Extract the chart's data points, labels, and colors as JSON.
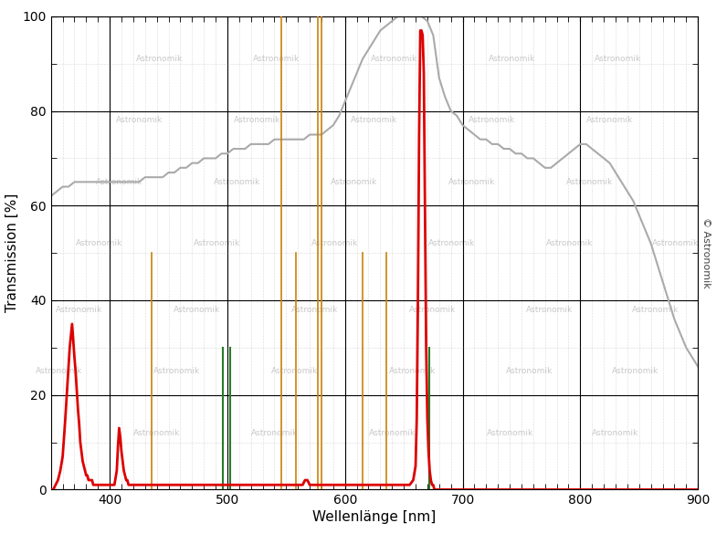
{
  "xlim": [
    350,
    900
  ],
  "ylim": [
    0,
    100
  ],
  "xlabel": "Wellenlänge [nm]",
  "ylabel": "Transmission [%]",
  "xticks": [
    400,
    500,
    600,
    700,
    800,
    900
  ],
  "yticks": [
    0,
    20,
    40,
    60,
    80,
    100
  ],
  "bg_color": "#ffffff",
  "grid_major_color": "#000000",
  "grid_minor_color": "#888888",
  "watermark_color": "#c8c8c8",
  "copyright_text": "© Astronomik",
  "orange_color": "#c8820a",
  "green_color": "#2a7a2a",
  "red_color": "#dd0000",
  "gray_color": "#aaaaaa",
  "orange_lines": [
    {
      "x": 436,
      "ymax": 0.5
    },
    {
      "x": 546,
      "ymax": 1.0
    },
    {
      "x": 558,
      "ymax": 0.5
    },
    {
      "x": 577,
      "ymax": 1.0
    },
    {
      "x": 580,
      "ymax": 1.0
    },
    {
      "x": 615,
      "ymax": 0.5
    },
    {
      "x": 635,
      "ymax": 0.5
    }
  ],
  "green_lines": [
    {
      "x": 496,
      "ymax": 0.3
    },
    {
      "x": 502,
      "ymax": 0.3
    },
    {
      "x": 672,
      "ymax": 0.3
    }
  ],
  "ccd_x": [
    350,
    355,
    360,
    365,
    370,
    375,
    380,
    385,
    390,
    395,
    400,
    405,
    410,
    415,
    420,
    425,
    430,
    435,
    440,
    445,
    450,
    455,
    460,
    465,
    470,
    475,
    480,
    485,
    490,
    495,
    500,
    505,
    510,
    515,
    520,
    525,
    530,
    535,
    540,
    545,
    550,
    555,
    560,
    565,
    570,
    575,
    580,
    585,
    590,
    595,
    600,
    605,
    610,
    615,
    620,
    625,
    630,
    635,
    640,
    645,
    650,
    655,
    660,
    665,
    670,
    675,
    680,
    685,
    690,
    695,
    700,
    705,
    710,
    715,
    720,
    725,
    730,
    735,
    740,
    745,
    750,
    755,
    760,
    765,
    770,
    775,
    780,
    785,
    790,
    795,
    800,
    805,
    810,
    815,
    820,
    825,
    830,
    835,
    840,
    845,
    850,
    855,
    860,
    865,
    870,
    875,
    880,
    885,
    890,
    895,
    900
  ],
  "ccd_y": [
    62,
    63,
    64,
    64,
    65,
    65,
    65,
    65,
    65,
    65,
    65,
    65,
    65,
    65,
    65,
    65,
    66,
    66,
    66,
    66,
    67,
    67,
    68,
    68,
    69,
    69,
    70,
    70,
    70,
    71,
    71,
    72,
    72,
    72,
    73,
    73,
    73,
    73,
    74,
    74,
    74,
    74,
    74,
    74,
    75,
    75,
    75,
    76,
    77,
    79,
    82,
    85,
    88,
    91,
    93,
    95,
    97,
    98,
    99,
    100,
    100,
    100,
    100,
    100,
    99,
    96,
    87,
    83,
    80,
    79,
    77,
    76,
    75,
    74,
    74,
    73,
    73,
    72,
    72,
    71,
    71,
    70,
    70,
    69,
    68,
    68,
    69,
    70,
    71,
    72,
    73,
    73,
    72,
    71,
    70,
    69,
    67,
    65,
    63,
    61,
    58,
    55,
    52,
    48,
    44,
    40,
    36,
    33,
    30,
    28,
    26
  ],
  "red_x": [
    350,
    352,
    354,
    356,
    358,
    360,
    362,
    364,
    366,
    368,
    370,
    371,
    372,
    373,
    374,
    375,
    376,
    377,
    378,
    379,
    380,
    381,
    382,
    383,
    384,
    385,
    386,
    387,
    388,
    390,
    392,
    394,
    396,
    398,
    400,
    402,
    404,
    406,
    407,
    408,
    409,
    410,
    411,
    412,
    413,
    414,
    415,
    416,
    418,
    420,
    422,
    424,
    426,
    428,
    430,
    435,
    440,
    445,
    450,
    460,
    470,
    480,
    490,
    500,
    510,
    520,
    530,
    540,
    550,
    555,
    560,
    562,
    564,
    566,
    568,
    570,
    575,
    580,
    585,
    590,
    595,
    600,
    605,
    610,
    615,
    620,
    625,
    630,
    635,
    640,
    645,
    650,
    655,
    658,
    660,
    661,
    662,
    663,
    664,
    665,
    666,
    667,
    668,
    669,
    670,
    671,
    672,
    673,
    674,
    675,
    676,
    677,
    678,
    679,
    680,
    682,
    685,
    690,
    695,
    700,
    710,
    720,
    730,
    740,
    750,
    760,
    770,
    780,
    790,
    800,
    850,
    900
  ],
  "red_y": [
    0,
    0,
    1,
    2,
    4,
    7,
    14,
    22,
    30,
    35,
    28,
    25,
    21,
    17,
    14,
    10,
    8,
    6,
    5,
    4,
    3,
    3,
    2,
    2,
    2,
    2,
    1,
    1,
    1,
    1,
    1,
    1,
    1,
    1,
    1,
    1,
    1,
    4,
    9,
    13,
    11,
    8,
    6,
    4,
    3,
    2,
    2,
    1,
    1,
    1,
    1,
    1,
    1,
    1,
    1,
    1,
    1,
    1,
    1,
    1,
    1,
    1,
    1,
    1,
    1,
    1,
    1,
    1,
    1,
    1,
    1,
    1,
    1,
    2,
    2,
    1,
    1,
    1,
    1,
    1,
    1,
    1,
    1,
    1,
    1,
    1,
    1,
    1,
    1,
    1,
    1,
    1,
    1,
    2,
    5,
    15,
    40,
    75,
    97,
    97,
    96,
    88,
    60,
    30,
    15,
    8,
    4,
    2,
    1,
    1,
    0,
    0,
    0,
    0,
    0,
    0,
    0,
    0,
    0,
    0,
    0,
    0,
    0,
    0,
    0,
    0,
    0,
    0,
    0,
    0,
    0,
    0
  ]
}
